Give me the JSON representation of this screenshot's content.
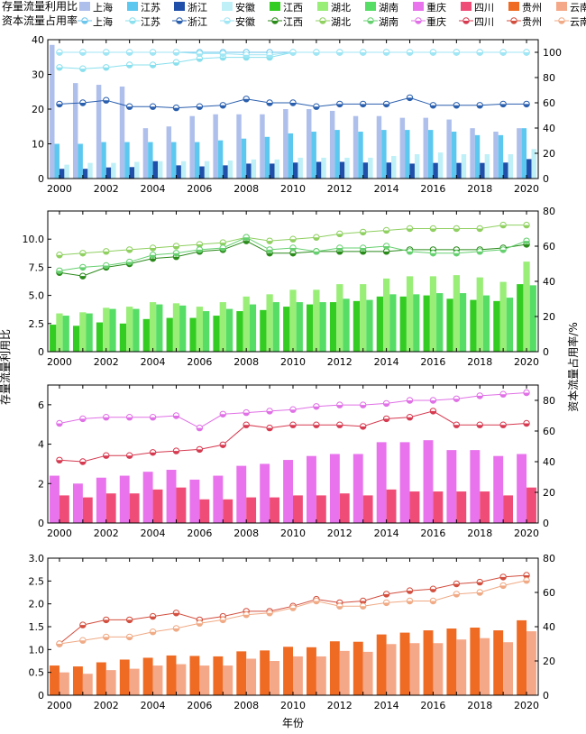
{
  "legend": {
    "bar_heading": "存量流量利用比",
    "line_heading": "资本流量占用率"
  },
  "axis_labels": {
    "left": "存量流量利用比",
    "right": "资本流量占用率/%",
    "bottom": "年份"
  },
  "chart_data": [
    {
      "type": "bar+line",
      "panel": 1,
      "ylim_left": [
        0,
        40
      ],
      "yticks_left": [
        "0",
        "10",
        "20",
        "30",
        "40"
      ],
      "ylim_right": [
        0,
        110
      ],
      "yticks_right": [
        "0",
        "20",
        "40",
        "60",
        "80",
        "100"
      ],
      "x": [
        2000,
        2001,
        2002,
        2003,
        2004,
        2005,
        2006,
        2007,
        2008,
        2009,
        2010,
        2011,
        2012,
        2013,
        2014,
        2015,
        2016,
        2017,
        2018,
        2019,
        2020
      ],
      "xticks": [
        "2000",
        "2002",
        "2004",
        "2006",
        "2008",
        "2010",
        "2012",
        "2014",
        "2016",
        "2018",
        "2020"
      ],
      "bar_series": [
        {
          "name": "上海",
          "color": "#aebfec",
          "values": [
            38.5,
            27.5,
            27.0,
            26.5,
            14.5,
            15.0,
            18.0,
            18.5,
            18.5,
            18.5,
            20.0,
            20.0,
            19.5,
            18.0,
            18.0,
            17.5,
            17.5,
            17.0,
            14.5,
            13.5,
            14.5
          ]
        },
        {
          "name": "江苏",
          "color": "#5cc8f0",
          "values": [
            10.0,
            10.0,
            10.5,
            10.5,
            10.5,
            10.5,
            10.5,
            11.0,
            11.5,
            12.0,
            13.0,
            13.5,
            14.0,
            13.5,
            14.0,
            14.0,
            14.0,
            13.5,
            12.5,
            12.5,
            14.5
          ]
        },
        {
          "name": "浙江",
          "color": "#1f4fa8",
          "values": [
            2.8,
            2.8,
            3.2,
            3.3,
            5.0,
            3.8,
            3.5,
            3.8,
            4.3,
            4.3,
            4.6,
            4.8,
            4.8,
            4.6,
            4.6,
            4.3,
            4.5,
            4.5,
            4.5,
            4.6,
            5.6
          ]
        },
        {
          "name": "安徽",
          "color": "#bff0f8",
          "values": [
            4.0,
            4.5,
            4.5,
            4.8,
            5.0,
            5.0,
            5.0,
            5.2,
            5.5,
            5.5,
            6.0,
            6.0,
            6.0,
            6.0,
            6.5,
            7.0,
            7.5,
            7.0,
            7.0,
            7.0,
            8.5
          ]
        }
      ],
      "line_series": [
        {
          "name": "上海",
          "color": "#6cc6ec",
          "marker": "half",
          "values": [
            100,
            100,
            100,
            100,
            100,
            100,
            100,
            100,
            100,
            100,
            100,
            100,
            100,
            100,
            100,
            100,
            100,
            100,
            100,
            100,
            100
          ]
        },
        {
          "name": "江苏",
          "color": "#8ae0ee",
          "marker": "half",
          "values": [
            88,
            87,
            88,
            90,
            90,
            92,
            95,
            96,
            96,
            96,
            100,
            100,
            100,
            100,
            100,
            100,
            100,
            100,
            100,
            100,
            100
          ]
        },
        {
          "name": "浙江",
          "color": "#2a5fae",
          "marker": "half",
          "values": [
            59,
            60,
            62,
            57,
            57,
            56,
            57,
            58,
            63,
            60,
            60,
            57,
            59,
            59,
            59,
            64,
            58,
            58,
            58,
            59,
            59
          ]
        },
        {
          "name": "安徽",
          "color": "#a0e6f4",
          "marker": "half",
          "values": [
            100,
            100,
            100,
            100,
            100,
            100,
            99,
            99,
            98,
            98,
            100,
            100,
            100,
            100,
            100,
            100,
            100,
            100,
            100,
            100,
            100
          ]
        }
      ]
    },
    {
      "type": "bar+line",
      "panel": 2,
      "ylim_left": [
        0,
        12.5
      ],
      "yticks_left": [
        "0",
        "2.5",
        "5.0",
        "7.5",
        "10.0"
      ],
      "ylim_right": [
        0,
        80
      ],
      "yticks_right": [
        "0",
        "20",
        "40",
        "60",
        "80"
      ],
      "x": [
        2000,
        2001,
        2002,
        2003,
        2004,
        2005,
        2006,
        2007,
        2008,
        2009,
        2010,
        2011,
        2012,
        2013,
        2014,
        2015,
        2016,
        2017,
        2018,
        2019,
        2020
      ],
      "xticks": [
        "2000",
        "2002",
        "2004",
        "2006",
        "2008",
        "2010",
        "2012",
        "2014",
        "2016",
        "2018",
        "2020"
      ],
      "bar_series": [
        {
          "name": "江西",
          "color": "#33cc22",
          "values": [
            2.4,
            2.3,
            2.6,
            2.5,
            2.9,
            3.0,
            3.0,
            3.2,
            3.6,
            3.7,
            4.0,
            4.2,
            4.4,
            4.5,
            4.9,
            4.9,
            5.0,
            4.7,
            4.6,
            4.5,
            6.0
          ]
        },
        {
          "name": "湖北",
          "color": "#99ee77",
          "values": [
            3.4,
            3.5,
            3.9,
            4.0,
            4.4,
            4.3,
            4.0,
            4.4,
            4.9,
            5.1,
            5.5,
            5.5,
            6.0,
            6.0,
            6.5,
            6.7,
            6.7,
            6.8,
            6.6,
            6.2,
            8.0
          ]
        },
        {
          "name": "湖南",
          "color": "#55dd66",
          "values": [
            3.2,
            3.4,
            3.8,
            3.8,
            4.2,
            4.1,
            3.6,
            3.8,
            4.2,
            4.4,
            4.4,
            4.4,
            4.7,
            4.6,
            5.1,
            5.1,
            5.2,
            5.2,
            5.0,
            4.8,
            5.9
          ]
        }
      ],
      "line_series": [
        {
          "name": "江西",
          "color": "#2a8a1a",
          "marker": "half",
          "values": [
            45,
            43,
            48,
            50,
            53,
            54,
            57,
            58,
            63,
            56,
            56,
            57,
            57,
            57,
            57,
            58,
            58,
            58,
            58,
            59,
            61
          ]
        },
        {
          "name": "湖北",
          "color": "#8fd060",
          "marker": "half",
          "values": [
            55,
            56,
            57,
            58,
            59,
            60,
            61,
            62,
            65,
            63,
            64,
            65,
            67,
            68,
            69,
            70,
            70,
            70,
            70,
            72,
            72
          ]
        },
        {
          "name": "湖南",
          "color": "#66d070",
          "marker": "half",
          "values": [
            46,
            48,
            49,
            51,
            55,
            56,
            58,
            59,
            65,
            58,
            59,
            57,
            59,
            59,
            60,
            57,
            56,
            56,
            57,
            58,
            63
          ]
        }
      ]
    },
    {
      "type": "bar+line",
      "panel": 3,
      "ylim_left": [
        0,
        7
      ],
      "yticks_left": [
        "0",
        "2",
        "4",
        "6"
      ],
      "ylim_right": [
        0,
        90
      ],
      "yticks_right": [
        "0",
        "20",
        "40",
        "60",
        "80"
      ],
      "x": [
        2000,
        2001,
        2002,
        2003,
        2004,
        2005,
        2006,
        2007,
        2008,
        2009,
        2010,
        2011,
        2012,
        2013,
        2014,
        2015,
        2016,
        2017,
        2018,
        2019,
        2020
      ],
      "xticks": [
        "2000",
        "2002",
        "2004",
        "2006",
        "2008",
        "2010",
        "2012",
        "2014",
        "2016",
        "2018",
        "2020"
      ],
      "bar_series": [
        {
          "name": "重庆",
          "color": "#e873ec",
          "values": [
            2.4,
            2.0,
            2.3,
            2.4,
            2.6,
            2.7,
            2.2,
            2.4,
            2.9,
            3.0,
            3.2,
            3.4,
            3.5,
            3.5,
            4.1,
            4.1,
            4.2,
            3.7,
            3.7,
            3.4,
            3.5
          ]
        },
        {
          "name": "四川",
          "color": "#ef4d78",
          "values": [
            1.4,
            1.3,
            1.5,
            1.5,
            1.7,
            1.8,
            1.2,
            1.2,
            1.3,
            1.3,
            1.4,
            1.4,
            1.5,
            1.4,
            1.7,
            1.6,
            1.6,
            1.6,
            1.6,
            1.4,
            1.8
          ]
        }
      ],
      "line_series": [
        {
          "name": "重庆",
          "color": "#e070e6",
          "marker": "half",
          "values": [
            65,
            68,
            69,
            69,
            69,
            70,
            62,
            71,
            72,
            73,
            74,
            76,
            77,
            77,
            78,
            80,
            80,
            81,
            83,
            84,
            85
          ]
        },
        {
          "name": "四川",
          "color": "#d63a50",
          "marker": "half",
          "values": [
            41,
            40,
            44,
            44,
            46,
            47,
            48,
            51,
            64,
            62,
            64,
            64,
            64,
            63,
            68,
            69,
            73,
            64,
            64,
            64,
            65
          ]
        }
      ]
    },
    {
      "type": "bar+line",
      "panel": 4,
      "ylim_left": [
        0,
        3
      ],
      "yticks_left": [
        "0",
        "0.5",
        "1.0",
        "1.5",
        "2.0",
        "2.5",
        "3.0"
      ],
      "ylim_right": [
        0,
        80
      ],
      "yticks_right": [
        "0",
        "20",
        "40",
        "60",
        "80"
      ],
      "x": [
        2000,
        2001,
        2002,
        2003,
        2004,
        2005,
        2006,
        2007,
        2008,
        2009,
        2010,
        2011,
        2012,
        2013,
        2014,
        2015,
        2016,
        2017,
        2018,
        2019,
        2020
      ],
      "xticks": [
        "2000",
        "2002",
        "2004",
        "2006",
        "2008",
        "2010",
        "2012",
        "2014",
        "2016",
        "2018",
        "2020"
      ],
      "bar_series": [
        {
          "name": "贵州",
          "color": "#ef6a23",
          "values": [
            0.65,
            0.63,
            0.72,
            0.78,
            0.82,
            0.87,
            0.86,
            0.85,
            0.96,
            0.98,
            1.06,
            1.05,
            1.18,
            1.17,
            1.33,
            1.37,
            1.42,
            1.46,
            1.48,
            1.42,
            1.64
          ]
        },
        {
          "name": "云南",
          "color": "#f5a888",
          "values": [
            0.5,
            0.47,
            0.55,
            0.58,
            0.65,
            0.68,
            0.65,
            0.65,
            0.8,
            0.75,
            0.85,
            0.85,
            0.97,
            0.95,
            1.12,
            1.14,
            1.14,
            1.22,
            1.25,
            1.16,
            1.4
          ]
        }
      ],
      "line_series": [
        {
          "name": "贵州",
          "color": "#d24e3e",
          "marker": "half",
          "values": [
            30,
            41,
            44,
            44,
            46,
            48,
            44,
            46,
            49,
            49,
            52,
            56,
            54,
            55,
            59,
            61,
            62,
            65,
            66,
            69,
            70
          ]
        },
        {
          "name": "云南",
          "color": "#f0aa85",
          "marker": "half",
          "values": [
            30,
            32,
            34,
            34,
            37,
            39,
            42,
            44,
            47,
            48,
            51,
            55,
            52,
            52,
            54,
            55,
            55,
            59,
            60,
            64,
            67
          ]
        }
      ]
    }
  ]
}
